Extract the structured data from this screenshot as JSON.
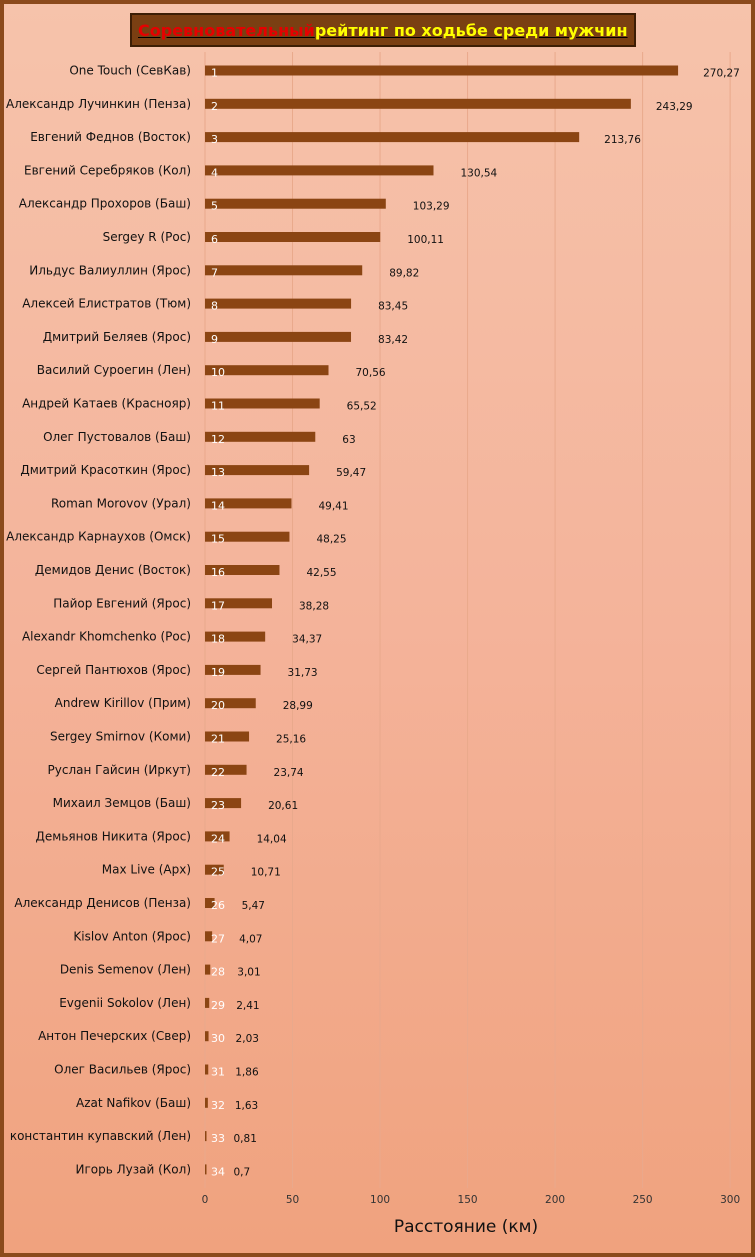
{
  "title": {
    "part_red": "Соревновательный",
    "part_yellow": " рейтинг по ходьбе среди мужчин"
  },
  "colors": {
    "bar": "#8b4513",
    "frame": "#8b4a1c",
    "title_bg": "#7a3f12",
    "title_red": "#e60000",
    "title_yellow": "#ffff00"
  },
  "chart_data": {
    "type": "bar",
    "orientation": "horizontal",
    "xlabel": "Расстояние (км)",
    "ylabel": "",
    "xlim": [
      0,
      300
    ],
    "xticks": [
      0,
      50,
      100,
      150,
      200,
      250,
      300
    ],
    "grid": true,
    "categories": [
      "One Touch (СевКав)",
      "Александр Лучинкин (Пенза)",
      "Евгений Феднов (Восток)",
      "Евгений Серебряков (Кол)",
      "Александр Прохоров (Баш)",
      "Sergey R (Рос)",
      "Ильдус Валиуллин (Ярос)",
      "Алексей Елистратов (Тюм)",
      "Дмитрий Беляев (Ярос)",
      "Василий Суроегин (Лен)",
      "Андрей Катаев (Краснояр)",
      "Олег Пустовалов (Баш)",
      "Дмитрий Красоткин (Ярос)",
      "Roman Morovov (Урал)",
      "Александр Карнаухов (Омск)",
      "Демидов Денис (Восток)",
      "Пайор Евгений (Ярос)",
      "Alexandr Khomchenko (Рос)",
      "Сергей Пантюхов (Ярос)",
      "Andrew Kirillov (Прим)",
      "Sergey Smirnov (Коми)",
      "Руслан Гайсин (Иркут)",
      "Михаил Земцов (Баш)",
      "Демьянов Никита (Ярос)",
      "Max Live (Арх)",
      "Александр Денисов (Пенза)",
      "Kislov Anton (Ярос)",
      "Denis Semenov (Лен)",
      "Evgenii Sokolov (Лен)",
      "Антон Печерских (Свер)",
      "Олег Васильев (Ярос)",
      "Azat Nafikov (Баш)",
      "константин купавский (Лен)",
      "Игорь Лузай (Кол)"
    ],
    "ranks": [
      "1",
      "2",
      "3",
      "4",
      "5",
      "6",
      "7",
      "8",
      "9",
      "10",
      "11",
      "12",
      "13",
      "14",
      "15",
      "16",
      "17",
      "18",
      "19",
      "20",
      "21",
      "22",
      "23",
      "24",
      "25",
      "26",
      "27",
      "28",
      "29",
      "30",
      "31",
      "32",
      "33",
      "34"
    ],
    "values": [
      270.27,
      243.29,
      213.76,
      130.54,
      103.29,
      100.11,
      89.82,
      83.45,
      83.42,
      70.56,
      65.52,
      63,
      59.47,
      49.41,
      48.25,
      42.55,
      38.28,
      34.37,
      31.73,
      28.99,
      25.16,
      23.74,
      20.61,
      14.04,
      10.71,
      5.47,
      4.07,
      3.01,
      2.41,
      2.03,
      1.86,
      1.63,
      0.81,
      0.7
    ],
    "value_labels": [
      "270,27",
      "243,29",
      "213,76",
      "130,54",
      "103,29",
      "100,11",
      "89,82",
      "83,45",
      "83,42",
      "70,56",
      "65,52",
      "63",
      "59,47",
      "49,41",
      "48,25",
      "42,55",
      "38,28",
      "34,37",
      "31,73",
      "28,99",
      "25,16",
      "23,74",
      "20,61",
      "14,04",
      "10,71",
      "5,47",
      "4,07",
      "3,01",
      "2,41",
      "2,03",
      "1,86",
      "1,63",
      "0,81",
      "0,7"
    ]
  }
}
